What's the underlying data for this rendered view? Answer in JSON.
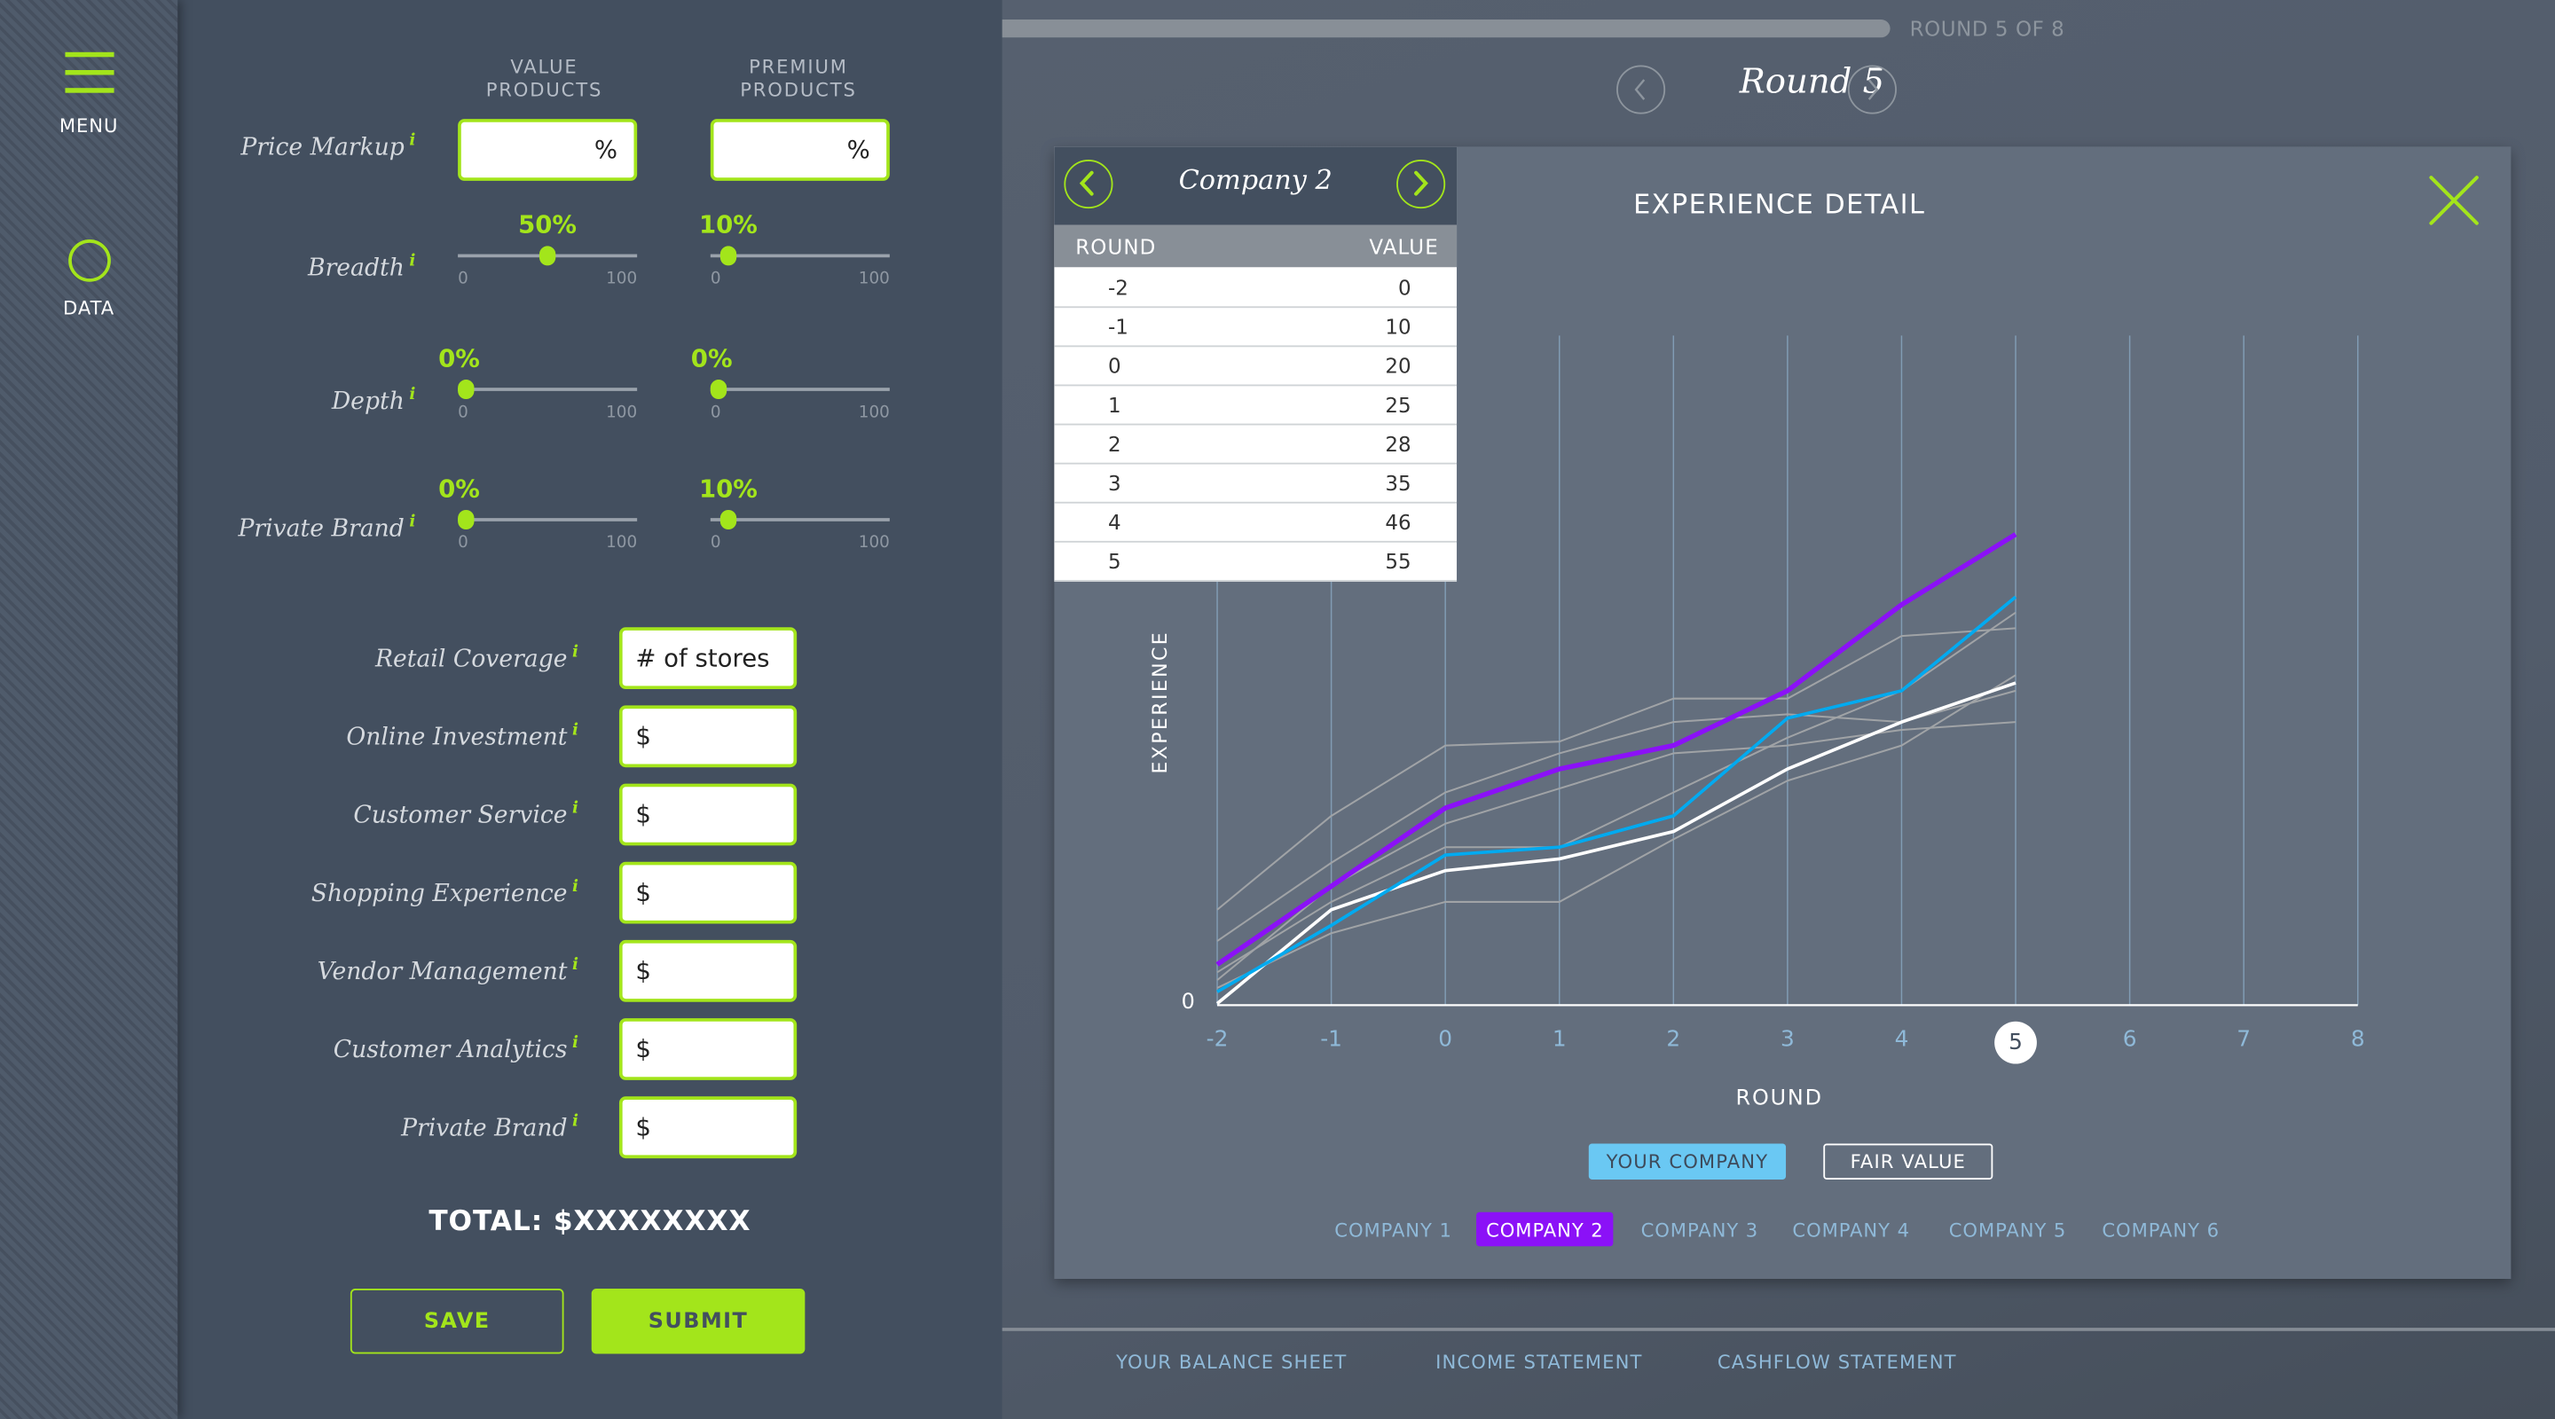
{
  "sidebar": {
    "items": [
      {
        "label": "MENU",
        "icon": "hamburger-icon"
      },
      {
        "label": "DATA",
        "icon": "circle-icon"
      }
    ]
  },
  "form": {
    "columns": [
      "VALUE PRODUCTS",
      "PREMIUM PRODUCTS"
    ],
    "columns_lines": [
      [
        "VALUE",
        "PRODUCTS"
      ],
      [
        "PREMIUM",
        "PRODUCTS"
      ]
    ],
    "price_markup": {
      "label": "Price Markup",
      "info": "i",
      "value_suffix": "%",
      "premium_suffix": "%"
    },
    "sliders": [
      {
        "label": "Breadth",
        "info": "i",
        "value": {
          "text": "50%",
          "pct": 50
        },
        "premium": {
          "text": "10%",
          "pct": 10
        },
        "min": "0",
        "max": "100"
      },
      {
        "label": "Depth",
        "info": "i",
        "value": {
          "text": "0%",
          "pct": 0
        },
        "premium": {
          "text": "0%",
          "pct": 0
        },
        "min": "0",
        "max": "100"
      },
      {
        "label": "Private Brand",
        "info": "i",
        "value": {
          "text": "0%",
          "pct": 0
        },
        "premium": {
          "text": "10%",
          "pct": 10
        },
        "min": "0",
        "max": "100"
      }
    ],
    "inputs": [
      {
        "label": "Retail Coverage",
        "info": "i",
        "value": "# of stores"
      },
      {
        "label": "Online Investment",
        "info": "i",
        "value": "$"
      },
      {
        "label": "Customer Service",
        "info": "i",
        "value": "$"
      },
      {
        "label": "Shopping Experience",
        "info": "i",
        "value": "$"
      },
      {
        "label": "Vendor Management",
        "info": "i",
        "value": "$"
      },
      {
        "label": "Customer Analytics",
        "info": "i",
        "value": "$"
      },
      {
        "label": "Private Brand",
        "info": "i",
        "value": "$"
      }
    ],
    "total": "TOTAL: $XXXXXXXX",
    "save_label": "SAVE",
    "submit_label": "SUBMIT"
  },
  "header": {
    "progress_pct": 62.5,
    "round_of": "ROUND 5 OF 8",
    "round_title": "Round 5",
    "prev_icon": "chevron-left-icon",
    "next_icon": "chevron-right-icon"
  },
  "modal": {
    "title": "EXPERIENCE DETAIL",
    "close_icon": "close-icon",
    "table": {
      "company": "Company 2",
      "columns": [
        "ROUND",
        "VALUE"
      ],
      "rows": [
        {
          "round": "-2",
          "value": "0"
        },
        {
          "round": "-1",
          "value": "10"
        },
        {
          "round": "0",
          "value": "20"
        },
        {
          "round": "1",
          "value": "25"
        },
        {
          "round": "2",
          "value": "28"
        },
        {
          "round": "3",
          "value": "35"
        },
        {
          "round": "4",
          "value": "46"
        },
        {
          "round": "5",
          "value": "55"
        }
      ]
    },
    "legend": {
      "your_company": "YOUR COMPANY",
      "fair_value": "FAIR VALUE"
    },
    "companies": [
      "COMPANY 1",
      "COMPANY 2",
      "COMPANY 3",
      "COMPANY 4",
      "COMPANY 5",
      "COMPANY 6"
    ],
    "active_company": "COMPANY 2"
  },
  "colors": {
    "accent": "#a3e51b",
    "your_company": "#00aaf0",
    "company_2": "#8b11f7",
    "fair_value": "#ffffff",
    "other_companies": "#a0a3a6"
  },
  "chart_data": {
    "type": "line",
    "title": "EXPERIENCE DETAIL",
    "xlabel": "ROUND",
    "ylabel": "EXPERIENCE",
    "x": [
      -2,
      -1,
      0,
      1,
      2,
      3,
      4,
      5,
      6,
      7,
      8
    ],
    "xlim": [
      -2,
      8
    ],
    "y_tick_labels": [
      "0"
    ],
    "selected_x": 5,
    "grid": "vertical",
    "series": [
      {
        "name": "Company 2",
        "color": "#8b11f7",
        "values": [
          0,
          10,
          20,
          25,
          28,
          35,
          46,
          55
        ]
      },
      {
        "name": "Your Company",
        "color": "#00aaf0",
        "values": [
          -3.5,
          5,
          14,
          15,
          19,
          31.5,
          35,
          47
        ]
      },
      {
        "name": "Fair Value",
        "color": "#ffffff",
        "values": [
          -5,
          7,
          12,
          13.5,
          17,
          25,
          31,
          36
        ]
      },
      {
        "name": "Company 1",
        "color": "#a0a3a6",
        "values": [
          7,
          19,
          28,
          28.5,
          34,
          34,
          42,
          43
        ]
      },
      {
        "name": "Company 3",
        "color": "#a0a3a6",
        "values": [
          3,
          13,
          22,
          27,
          31,
          32,
          31,
          35
        ]
      },
      {
        "name": "Company 4",
        "color": "#a0a3a6",
        "values": [
          -2,
          10,
          18,
          22.5,
          27,
          28,
          30,
          31
        ]
      },
      {
        "name": "Company 5",
        "color": "#a0a3a6",
        "values": [
          -1,
          8,
          15,
          15,
          22,
          29,
          35,
          45
        ]
      },
      {
        "name": "Company 6",
        "color": "#a0a3a6",
        "values": [
          -3,
          4,
          8,
          8,
          16,
          23.5,
          28,
          37
        ]
      }
    ]
  },
  "bottom_tabs": [
    "YOUR BALANCE SHEET",
    "INCOME STATEMENT",
    "CASHFLOW STATEMENT"
  ]
}
